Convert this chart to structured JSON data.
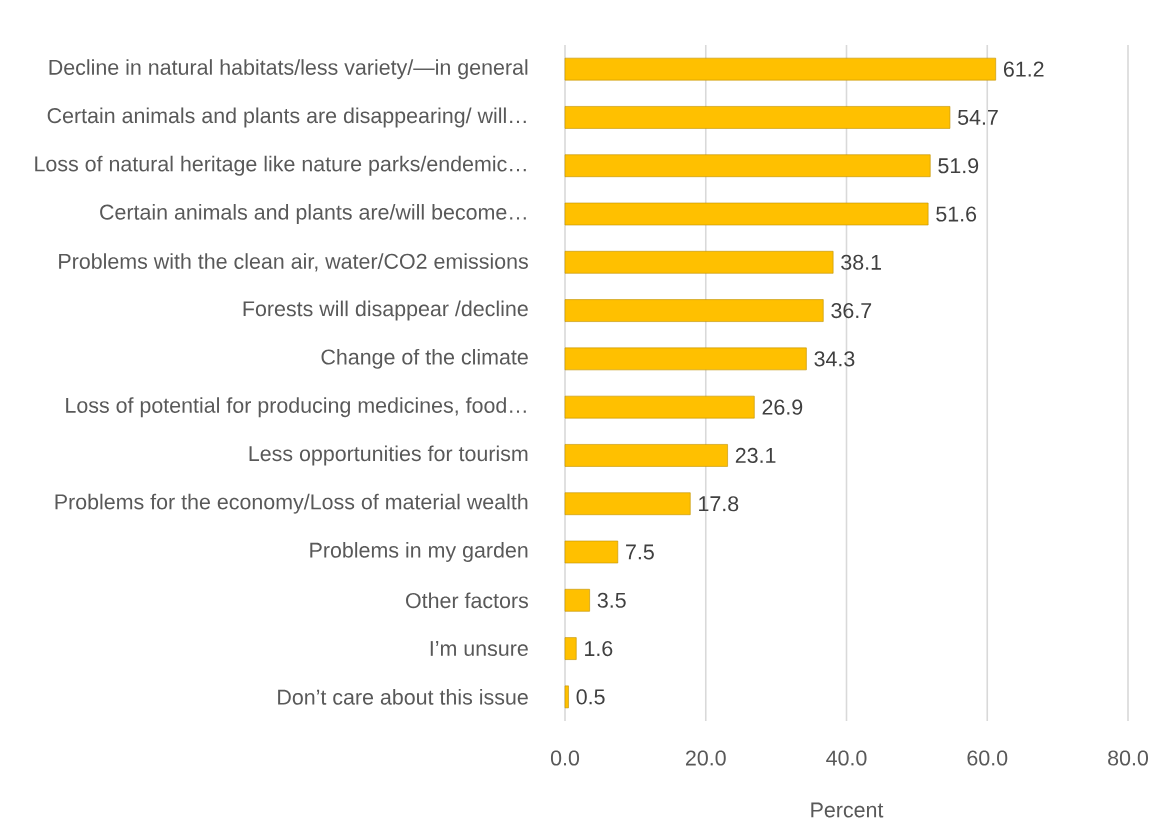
{
  "chart_data": {
    "type": "bar",
    "orientation": "horizontal",
    "categories": [
      "Decline in natural habitats/less variety/—in general",
      "Certain animals and plants are disappearing/ will…",
      "Loss of natural heritage like nature parks/endemic…",
      "Certain animals and plants are/will become…",
      "Problems with the clean air, water/CO2 emissions",
      "Forests will disappear /decline",
      "Change of the climate",
      "Loss of potential for producing medicines, food…",
      "Less opportunities for tourism",
      "Problems for the economy/Loss of material wealth",
      "Problems in my garden",
      "Other factors",
      "I’m unsure",
      "Don’t care about this issue"
    ],
    "values": [
      61.2,
      54.7,
      51.9,
      51.6,
      38.1,
      36.7,
      34.3,
      26.9,
      23.1,
      17.8,
      7.5,
      3.5,
      1.6,
      0.5
    ],
    "color": "#ffc000",
    "xlabel": "Percent",
    "xlim": [
      0,
      80
    ],
    "xticks": [
      {
        "value": 0,
        "label": "0.0"
      },
      {
        "value": 20,
        "label": "20.0"
      },
      {
        "value": 40,
        "label": "40.0"
      },
      {
        "value": 60,
        "label": "60.0"
      },
      {
        "value": 80,
        "label": "80.0"
      }
    ],
    "grid": "x",
    "data_labels": true
  }
}
